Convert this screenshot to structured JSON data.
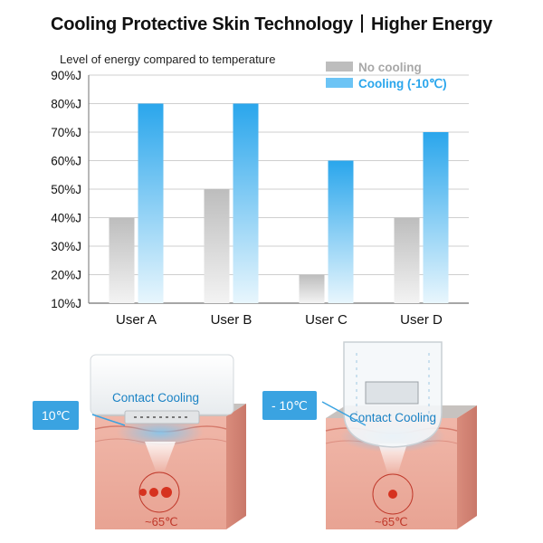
{
  "title": {
    "left": "Cooling Protective Skin Technology",
    "right": "Higher Energy"
  },
  "chart_data": {
    "type": "bar",
    "title": "Level of energy compared to temperature",
    "categories": [
      "User A",
      "User B",
      "User C",
      "User D"
    ],
    "y_ticks": [
      "10%J",
      "20%J",
      "30%J",
      "40%J",
      "50%J",
      "60%J",
      "70%J",
      "80%J",
      "90%J"
    ],
    "ylim": [
      10,
      90
    ],
    "y_unit": "%J",
    "grid": true,
    "legend_position": "top-right",
    "series": [
      {
        "name": "No cooling",
        "values": [
          40,
          50,
          20,
          40
        ],
        "color": "#bdbdbd"
      },
      {
        "name": "Cooling (-10℃)",
        "values": [
          80,
          80,
          60,
          70
        ],
        "color": "#2aa6ec"
      }
    ]
  },
  "illustrations": {
    "left": {
      "caption": "Contact Cooling",
      "callout": "10℃",
      "temperature": "~65℃"
    },
    "right": {
      "caption": "Contact Cooling",
      "callout": "- 10℃",
      "temperature": "~65℃"
    }
  },
  "colors": {
    "accent": "#2aa6ec",
    "no_cooling": "#bdbdbd",
    "skin": "#e9a79b",
    "hot_spot": "#d6321f",
    "callout": "#3aa3e1"
  }
}
